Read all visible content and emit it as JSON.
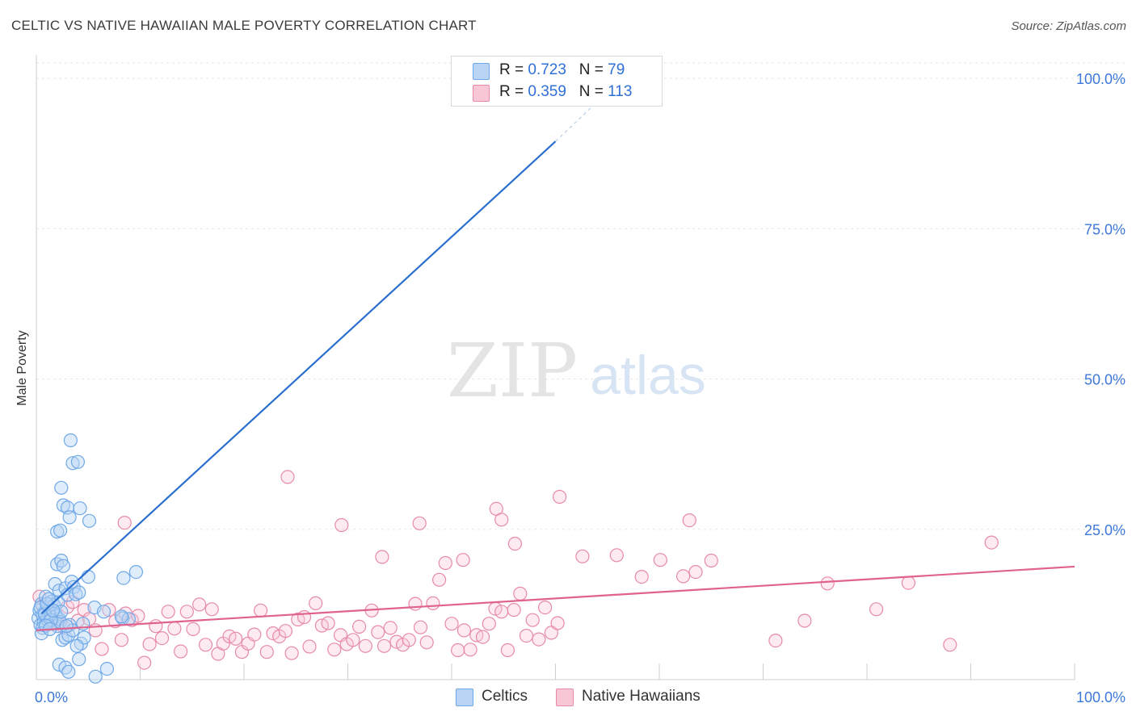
{
  "header": {
    "title": "CELTIC VS NATIVE HAWAIIAN MALE POVERTY CORRELATION CHART",
    "source": "Source: ZipAtlas.com"
  },
  "watermark": {
    "part1": "ZIP",
    "part2": "atlas"
  },
  "legend": {
    "series": [
      {
        "name": "Celtics",
        "r_label": "R = ",
        "r_value": "0.723",
        "n_label": "N = ",
        "n_value": "79",
        "color": "#6fa8e8",
        "fill": "#b9d4f5"
      },
      {
        "name": "Native Hawaiians",
        "r_label": "R = ",
        "r_value": "0.359",
        "n_label": "N = ",
        "n_value": "113",
        "color": "#e78aa8",
        "fill": "#f9c6d6"
      }
    ]
  },
  "chart_data": {
    "type": "scatter",
    "title": "CELTIC VS NATIVE HAWAIIAN MALE POVERTY CORRELATION CHART",
    "xlabel": "",
    "ylabel": "Male Poverty",
    "xlim": [
      0,
      100
    ],
    "ylim": [
      0,
      100
    ],
    "x_tick_labels": [
      "0.0%",
      "100.0%"
    ],
    "y_ticks": [
      25,
      50,
      75,
      100
    ],
    "y_tick_labels": [
      "25.0%",
      "50.0%",
      "75.0%",
      "100.0%"
    ],
    "grid": true,
    "legend_position": "top-center",
    "series": [
      {
        "name": "Celtics",
        "color": "#2b6fce",
        "trendline": {
          "x": [
            0.5,
            50
          ],
          "y": [
            11.0,
            89.5
          ],
          "dashed_extension_to": [
            55.5,
            98.5
          ]
        },
        "points": [
          [
            0.2,
            10.2
          ],
          [
            0.3,
            11.5
          ],
          [
            0.4,
            9.1
          ],
          [
            0.5,
            12.6
          ],
          [
            0.6,
            10.8
          ],
          [
            0.7,
            9.5
          ],
          [
            0.8,
            11.2
          ],
          [
            0.9,
            13.8
          ],
          [
            1.0,
            10.0
          ],
          [
            1.1,
            12.1
          ],
          [
            1.2,
            9.8
          ],
          [
            1.3,
            11.7
          ],
          [
            1.4,
            10.4
          ],
          [
            1.5,
            13.0
          ],
          [
            1.6,
            9.3
          ],
          [
            1.7,
            12.4
          ],
          [
            1.8,
            11.0
          ],
          [
            1.9,
            10.6
          ],
          [
            2.0,
            8.9
          ],
          [
            2.1,
            12.9
          ],
          [
            2.2,
            10.1
          ],
          [
            2.3,
            9.6
          ],
          [
            2.4,
            11.3
          ],
          [
            0.4,
            12.0
          ],
          [
            0.6,
            8.6
          ],
          [
            0.8,
            10.9
          ],
          [
            1.0,
            12.6
          ],
          [
            1.2,
            13.4
          ],
          [
            1.4,
            9.9
          ],
          [
            1.6,
            11.5
          ],
          [
            1.8,
            15.9
          ],
          [
            2.0,
            19.2
          ],
          [
            2.2,
            14.8
          ],
          [
            2.4,
            19.8
          ],
          [
            2.6,
            18.9
          ],
          [
            2.8,
            15.2
          ],
          [
            3.0,
            14.1
          ],
          [
            3.2,
            9.1
          ],
          [
            3.4,
            16.3
          ],
          [
            3.6,
            15.4
          ],
          [
            2.4,
            31.9
          ],
          [
            2.6,
            29.0
          ],
          [
            3.0,
            28.6
          ],
          [
            3.2,
            27.0
          ],
          [
            3.3,
            39.8
          ],
          [
            3.5,
            36.0
          ],
          [
            4.0,
            36.2
          ],
          [
            4.2,
            28.5
          ],
          [
            5.1,
            26.4
          ],
          [
            2.0,
            24.6
          ],
          [
            2.3,
            24.8
          ],
          [
            5.0,
            17.1
          ],
          [
            3.8,
            14.2
          ],
          [
            4.1,
            14.5
          ],
          [
            5.6,
            12.0
          ],
          [
            6.5,
            11.3
          ],
          [
            8.3,
            10.2
          ],
          [
            8.9,
            10.1
          ],
          [
            8.4,
            16.9
          ],
          [
            9.6,
            17.9
          ],
          [
            8.2,
            10.5
          ],
          [
            2.5,
            6.6
          ],
          [
            2.8,
            7.0
          ],
          [
            3.1,
            7.4
          ],
          [
            4.3,
            6.0
          ],
          [
            4.6,
            7.0
          ],
          [
            3.5,
            8.2
          ],
          [
            3.9,
            5.6
          ],
          [
            2.2,
            2.5
          ],
          [
            2.8,
            2.0
          ],
          [
            3.1,
            1.3
          ],
          [
            4.1,
            3.4
          ],
          [
            5.7,
            0.5
          ],
          [
            6.8,
            1.8
          ],
          [
            0.5,
            7.7
          ],
          [
            0.9,
            9.0
          ],
          [
            1.3,
            8.4
          ],
          [
            4.5,
            9.3
          ],
          [
            2.9,
            8.9
          ]
        ]
      },
      {
        "name": "Native Hawaiians",
        "color": "#e0628e",
        "trendline": {
          "x": [
            0,
            100
          ],
          "y": [
            8.2,
            18.8
          ]
        },
        "points": [
          [
            0.3,
            13.8
          ],
          [
            0.6,
            12.3
          ],
          [
            1.0,
            11.0
          ],
          [
            1.4,
            10.4
          ],
          [
            1.8,
            9.6
          ],
          [
            2.2,
            9.4
          ],
          [
            2.6,
            8.8
          ],
          [
            3.0,
            12.1
          ],
          [
            3.5,
            12.9
          ],
          [
            4.0,
            9.8
          ],
          [
            4.6,
            11.6
          ],
          [
            5.1,
            10.1
          ],
          [
            5.7,
            8.2
          ],
          [
            6.3,
            5.1
          ],
          [
            7.0,
            11.6
          ],
          [
            7.6,
            9.7
          ],
          [
            8.2,
            6.6
          ],
          [
            8.6,
            11.0
          ],
          [
            9.2,
            9.9
          ],
          [
            9.8,
            10.6
          ],
          [
            10.4,
            2.8
          ],
          [
            10.9,
            5.9
          ],
          [
            11.5,
            8.9
          ],
          [
            12.1,
            6.9
          ],
          [
            12.7,
            11.3
          ],
          [
            13.3,
            8.5
          ],
          [
            13.9,
            4.7
          ],
          [
            14.5,
            11.3
          ],
          [
            15.1,
            8.4
          ],
          [
            15.7,
            12.5
          ],
          [
            16.3,
            5.8
          ],
          [
            16.9,
            11.7
          ],
          [
            17.5,
            4.3
          ],
          [
            18.0,
            6.0
          ],
          [
            18.6,
            7.2
          ],
          [
            19.2,
            6.8
          ],
          [
            19.8,
            4.6
          ],
          [
            20.4,
            6.0
          ],
          [
            21.0,
            7.5
          ],
          [
            21.6,
            11.5
          ],
          [
            22.2,
            4.6
          ],
          [
            22.8,
            7.7
          ],
          [
            23.4,
            7.2
          ],
          [
            24.0,
            8.1
          ],
          [
            24.6,
            4.4
          ],
          [
            25.2,
            10.0
          ],
          [
            25.8,
            10.4
          ],
          [
            26.3,
            5.5
          ],
          [
            26.9,
            12.7
          ],
          [
            27.5,
            9.0
          ],
          [
            28.1,
            9.4
          ],
          [
            28.7,
            5.0
          ],
          [
            29.3,
            7.4
          ],
          [
            29.9,
            5.9
          ],
          [
            30.5,
            6.6
          ],
          [
            31.1,
            8.8
          ],
          [
            31.7,
            5.6
          ],
          [
            32.3,
            11.5
          ],
          [
            32.9,
            7.9
          ],
          [
            33.5,
            5.6
          ],
          [
            34.1,
            8.6
          ],
          [
            34.7,
            6.3
          ],
          [
            35.3,
            5.8
          ],
          [
            35.9,
            6.6
          ],
          [
            36.5,
            12.6
          ],
          [
            37.0,
            8.7
          ],
          [
            37.6,
            6.2
          ],
          [
            38.2,
            12.7
          ],
          [
            38.8,
            16.6
          ],
          [
            39.4,
            19.4
          ],
          [
            40.0,
            9.3
          ],
          [
            40.6,
            4.9
          ],
          [
            41.2,
            8.2
          ],
          [
            41.8,
            5.0
          ],
          [
            42.4,
            7.4
          ],
          [
            43.0,
            7.1
          ],
          [
            43.6,
            9.3
          ],
          [
            44.2,
            11.8
          ],
          [
            44.8,
            11.3
          ],
          [
            45.4,
            4.9
          ],
          [
            46.0,
            11.6
          ],
          [
            46.6,
            14.3
          ],
          [
            47.2,
            7.3
          ],
          [
            47.8,
            9.9
          ],
          [
            48.4,
            6.7
          ],
          [
            49.0,
            12.0
          ],
          [
            49.6,
            7.8
          ],
          [
            50.2,
            9.4
          ],
          [
            8.5,
            26.1
          ],
          [
            24.2,
            33.7
          ],
          [
            29.4,
            25.7
          ],
          [
            33.3,
            20.4
          ],
          [
            36.9,
            26.0
          ],
          [
            41.1,
            19.9
          ],
          [
            44.3,
            28.4
          ],
          [
            44.8,
            26.6
          ],
          [
            46.1,
            22.6
          ],
          [
            50.4,
            30.4
          ],
          [
            52.6,
            20.5
          ],
          [
            55.9,
            20.7
          ],
          [
            58.3,
            17.1
          ],
          [
            60.1,
            19.9
          ],
          [
            62.3,
            17.2
          ],
          [
            62.9,
            26.5
          ],
          [
            65.0,
            19.8
          ],
          [
            71.2,
            6.5
          ],
          [
            74.0,
            9.8
          ],
          [
            76.2,
            16.0
          ],
          [
            80.9,
            11.7
          ],
          [
            84.0,
            16.1
          ],
          [
            88.0,
            5.8
          ],
          [
            92.0,
            22.8
          ],
          [
            63.5,
            17.9
          ]
        ]
      }
    ]
  }
}
